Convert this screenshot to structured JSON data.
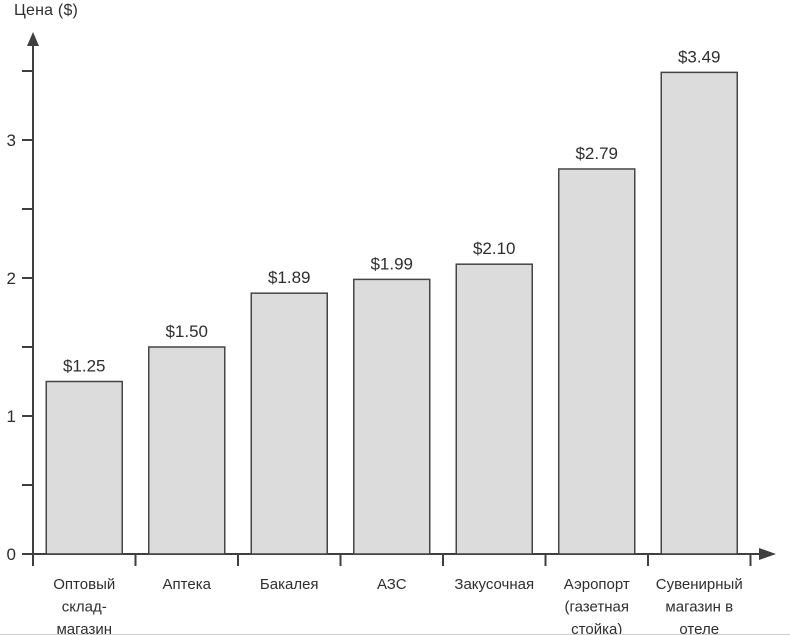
{
  "chart_data": {
    "type": "bar",
    "title": "Цена ($)",
    "ylabel": "Цена ($)",
    "xlabel": "",
    "categories": [
      "Оптовый склад-магазин",
      "Аптека",
      "Бакалея",
      "АЗС",
      "Закусочная",
      "Аэропорт (газетная стойка)",
      "Сувенирный магазин в отеле"
    ],
    "category_lines": [
      [
        "Оптовый",
        "склад-",
        "магазин"
      ],
      [
        "Аптека"
      ],
      [
        "Бакалея"
      ],
      [
        "АЗС"
      ],
      [
        "Закусочная"
      ],
      [
        "Аэропорт",
        "(газетная",
        "стойка)"
      ],
      [
        "Сувенирный",
        "магазин в",
        "отеле"
      ]
    ],
    "values": [
      1.25,
      1.5,
      1.89,
      1.99,
      2.1,
      2.79,
      3.49
    ],
    "value_labels": [
      "$1.25",
      "$1.50",
      "$1.89",
      "$1.99",
      "$2.10",
      "$2.79",
      "$3.49"
    ],
    "ylim": [
      0,
      3.6
    ],
    "y_major_ticks": [
      0,
      1,
      2,
      3
    ],
    "y_tick_step": 0.5,
    "grid": false,
    "legend": "none",
    "colors": {
      "bar_fill": "#dcdcdc",
      "bar_stroke": "#454545",
      "axis": "#3f3f3f",
      "text": "#2e2e2e"
    }
  }
}
